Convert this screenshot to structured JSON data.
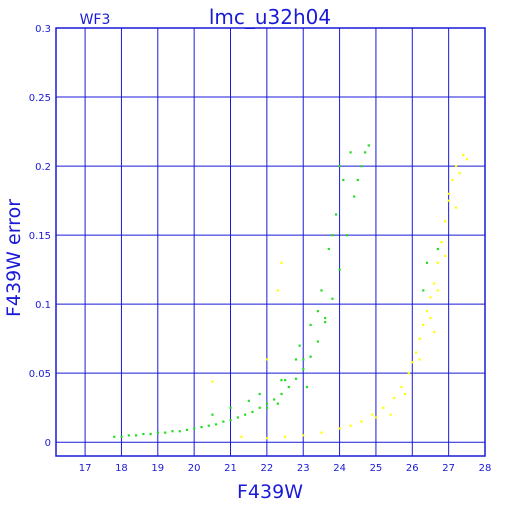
{
  "chart_data": {
    "type": "scatter",
    "title": "lmc_u32h04",
    "subtitle": "WF3",
    "xlabel": "F439W",
    "ylabel": "F439W error",
    "xlim": [
      16.2,
      28.0
    ],
    "ylim": [
      -0.01,
      0.3
    ],
    "xticks": [
      "17",
      "18",
      "19",
      "20",
      "21",
      "22",
      "23",
      "24",
      "25",
      "26",
      "27",
      "28"
    ],
    "yticks": [
      "0",
      "0.05",
      "0.1",
      "0.15",
      "0.2",
      "0.25",
      "0.3"
    ],
    "grid": true,
    "legend": "none",
    "colors": {
      "frame": "#1a1ad8",
      "grid": "#1a1ad8",
      "green": "#22dd22",
      "yellow": "#ffff00"
    },
    "series": [
      {
        "color": "green",
        "points": [
          [
            17.8,
            0.004
          ],
          [
            18.0,
            0.004
          ],
          [
            18.2,
            0.005
          ],
          [
            18.4,
            0.005
          ],
          [
            18.6,
            0.006
          ],
          [
            18.8,
            0.006
          ],
          [
            19.0,
            0.007
          ],
          [
            19.2,
            0.007
          ],
          [
            19.4,
            0.008
          ],
          [
            19.6,
            0.008
          ],
          [
            19.8,
            0.009
          ],
          [
            20.0,
            0.01
          ],
          [
            20.2,
            0.011
          ],
          [
            20.4,
            0.012
          ],
          [
            20.6,
            0.013
          ],
          [
            20.8,
            0.015
          ],
          [
            21.0,
            0.016
          ],
          [
            21.2,
            0.018
          ],
          [
            21.4,
            0.02
          ],
          [
            21.6,
            0.022
          ],
          [
            21.8,
            0.025
          ],
          [
            22.0,
            0.028
          ],
          [
            22.2,
            0.031
          ],
          [
            22.4,
            0.035
          ],
          [
            22.6,
            0.04
          ],
          [
            22.8,
            0.046
          ],
          [
            23.0,
            0.053
          ],
          [
            23.2,
            0.062
          ],
          [
            23.4,
            0.073
          ],
          [
            23.6,
            0.087
          ],
          [
            23.8,
            0.104
          ],
          [
            24.0,
            0.125
          ],
          [
            24.2,
            0.15
          ],
          [
            24.4,
            0.178
          ],
          [
            24.6,
            0.2
          ],
          [
            24.8,
            0.215
          ],
          [
            22.0,
            0.025
          ],
          [
            22.5,
            0.045
          ],
          [
            23.0,
            0.06
          ],
          [
            23.2,
            0.085
          ],
          [
            23.5,
            0.11
          ],
          [
            23.7,
            0.14
          ],
          [
            23.9,
            0.165
          ],
          [
            24.1,
            0.19
          ],
          [
            24.3,
            0.21
          ],
          [
            22.8,
            0.06
          ],
          [
            23.1,
            0.04
          ],
          [
            21.5,
            0.03
          ],
          [
            20.5,
            0.02
          ],
          [
            21.0,
            0.025
          ],
          [
            22.3,
            0.028
          ],
          [
            23.6,
            0.09
          ],
          [
            24.0,
            0.2
          ],
          [
            24.5,
            0.19
          ],
          [
            24.7,
            0.21
          ],
          [
            23.4,
            0.095
          ],
          [
            23.8,
            0.15
          ],
          [
            22.9,
            0.07
          ],
          [
            22.4,
            0.045
          ],
          [
            21.8,
            0.035
          ],
          [
            26.4,
            0.13
          ],
          [
            26.7,
            0.14
          ],
          [
            26.3,
            0.11
          ]
        ]
      },
      {
        "color": "yellow",
        "points": [
          [
            20.5,
            0.044
          ],
          [
            21.3,
            0.004
          ],
          [
            22.0,
            0.003
          ],
          [
            22.5,
            0.004
          ],
          [
            23.0,
            0.005
          ],
          [
            23.5,
            0.007
          ],
          [
            24.0,
            0.01
          ],
          [
            24.3,
            0.012
          ],
          [
            24.6,
            0.015
          ],
          [
            24.9,
            0.02
          ],
          [
            25.2,
            0.025
          ],
          [
            25.5,
            0.032
          ],
          [
            25.7,
            0.04
          ],
          [
            25.9,
            0.05
          ],
          [
            26.0,
            0.058
          ],
          [
            26.1,
            0.065
          ],
          [
            26.2,
            0.075
          ],
          [
            26.3,
            0.085
          ],
          [
            26.4,
            0.095
          ],
          [
            26.5,
            0.105
          ],
          [
            26.6,
            0.115
          ],
          [
            26.7,
            0.13
          ],
          [
            26.8,
            0.145
          ],
          [
            26.9,
            0.16
          ],
          [
            27.0,
            0.175
          ],
          [
            27.1,
            0.19
          ],
          [
            27.2,
            0.2
          ],
          [
            27.4,
            0.208
          ],
          [
            27.5,
            0.205
          ],
          [
            27.3,
            0.195
          ],
          [
            26.5,
            0.09
          ],
          [
            26.7,
            0.11
          ],
          [
            26.2,
            0.06
          ],
          [
            25.8,
            0.035
          ],
          [
            25.4,
            0.02
          ],
          [
            25.0,
            0.018
          ],
          [
            22.4,
            0.13
          ],
          [
            22.3,
            0.11
          ],
          [
            22.0,
            0.06
          ],
          [
            27.0,
            0.18
          ],
          [
            27.2,
            0.17
          ],
          [
            26.9,
            0.135
          ],
          [
            26.6,
            0.08
          ]
        ]
      }
    ]
  }
}
